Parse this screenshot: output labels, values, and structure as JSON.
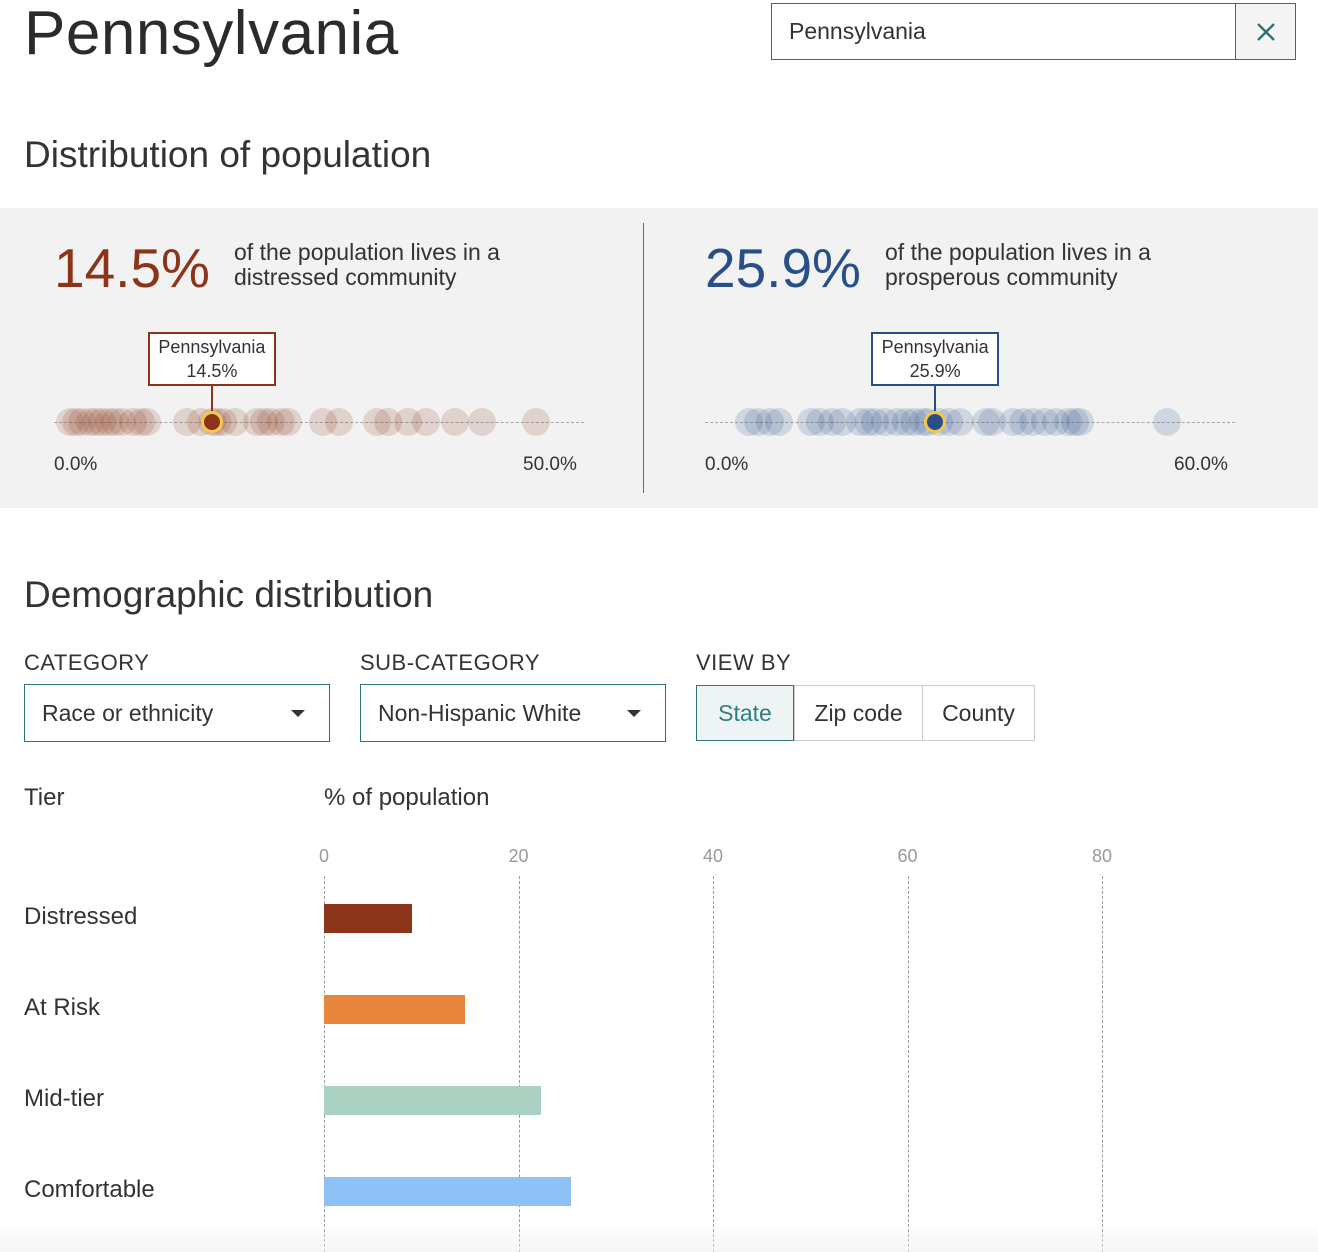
{
  "page": {
    "title": "Pennsylvania"
  },
  "search": {
    "value": "Pennsylvania",
    "clear_icon": "close-icon"
  },
  "distribution": {
    "heading": "Distribution of population",
    "distressed": {
      "value": "14.5%",
      "text_line1": "of the population lives in a",
      "text_line2": "distressed community",
      "color": "#8b3419",
      "marker_label_name": "Pennsylvania",
      "marker_label_value": "14.5%",
      "axis_min": "0.0%",
      "axis_max": "50.0%",
      "state_values": [
        0.6,
        1.2,
        1.8,
        2.5,
        3.1,
        3.7,
        4.4,
        5.0,
        5.7,
        6.8,
        7.5,
        8.1,
        12.1,
        13.4,
        14.5,
        15.0,
        15.6,
        16.8,
        18.9,
        19.6,
        20.3,
        21.3,
        22.0,
        25.4,
        27.0,
        30.7,
        31.8,
        33.7,
        35.5,
        38.3,
        41.0,
        46.3
      ],
      "marker_value": 14.5,
      "axis_range": [
        0,
        50
      ]
    },
    "prosperous": {
      "value": "25.9%",
      "text_line1": "of the population lives in a",
      "text_line2": "prosperous community",
      "color": "#294f88",
      "marker_label_name": "Pennsylvania",
      "marker_label_value": "25.9%",
      "axis_min": "0.0%",
      "axis_max": "60.0%",
      "state_values": [
        4.0,
        5.1,
        6.5,
        7.5,
        11.3,
        12.4,
        13.8,
        14.9,
        17.0,
        18.0,
        18.8,
        20.0,
        21.4,
        22.5,
        23.4,
        24.5,
        25.0,
        26.4,
        27.5,
        28.8,
        31.9,
        32.6,
        35.1,
        36.2,
        37.4,
        38.8,
        40.1,
        41.5,
        42.4,
        42.9,
        53.2
      ],
      "marker_value": 25.9,
      "axis_range": [
        0,
        60
      ]
    }
  },
  "demographic": {
    "heading": "Demographic distribution",
    "category_label": "CATEGORY",
    "category_value": "Race or ethnicity",
    "subcategory_label": "SUB-CATEGORY",
    "subcategory_value": "Non-Hispanic White",
    "viewby_label": "VIEW BY",
    "viewby_options": [
      "State",
      "Zip code",
      "County"
    ],
    "viewby_selected": "State",
    "tier_header": "Tier",
    "value_header": "% of population"
  },
  "chart_data": {
    "type": "bar",
    "orientation": "horizontal",
    "categories": [
      "Distressed",
      "At Risk",
      "Mid-tier",
      "Comfortable"
    ],
    "values": [
      9,
      14.5,
      22.3,
      25.4
    ],
    "colors": [
      "#8b3419",
      "#e8873c",
      "#abd1c3",
      "#8ec1f5"
    ],
    "xlabel": "% of population",
    "ylabel": "Tier",
    "xticks": [
      "0",
      "20",
      "40",
      "60",
      "80"
    ],
    "xlim": [
      0,
      80
    ],
    "grid": true
  }
}
